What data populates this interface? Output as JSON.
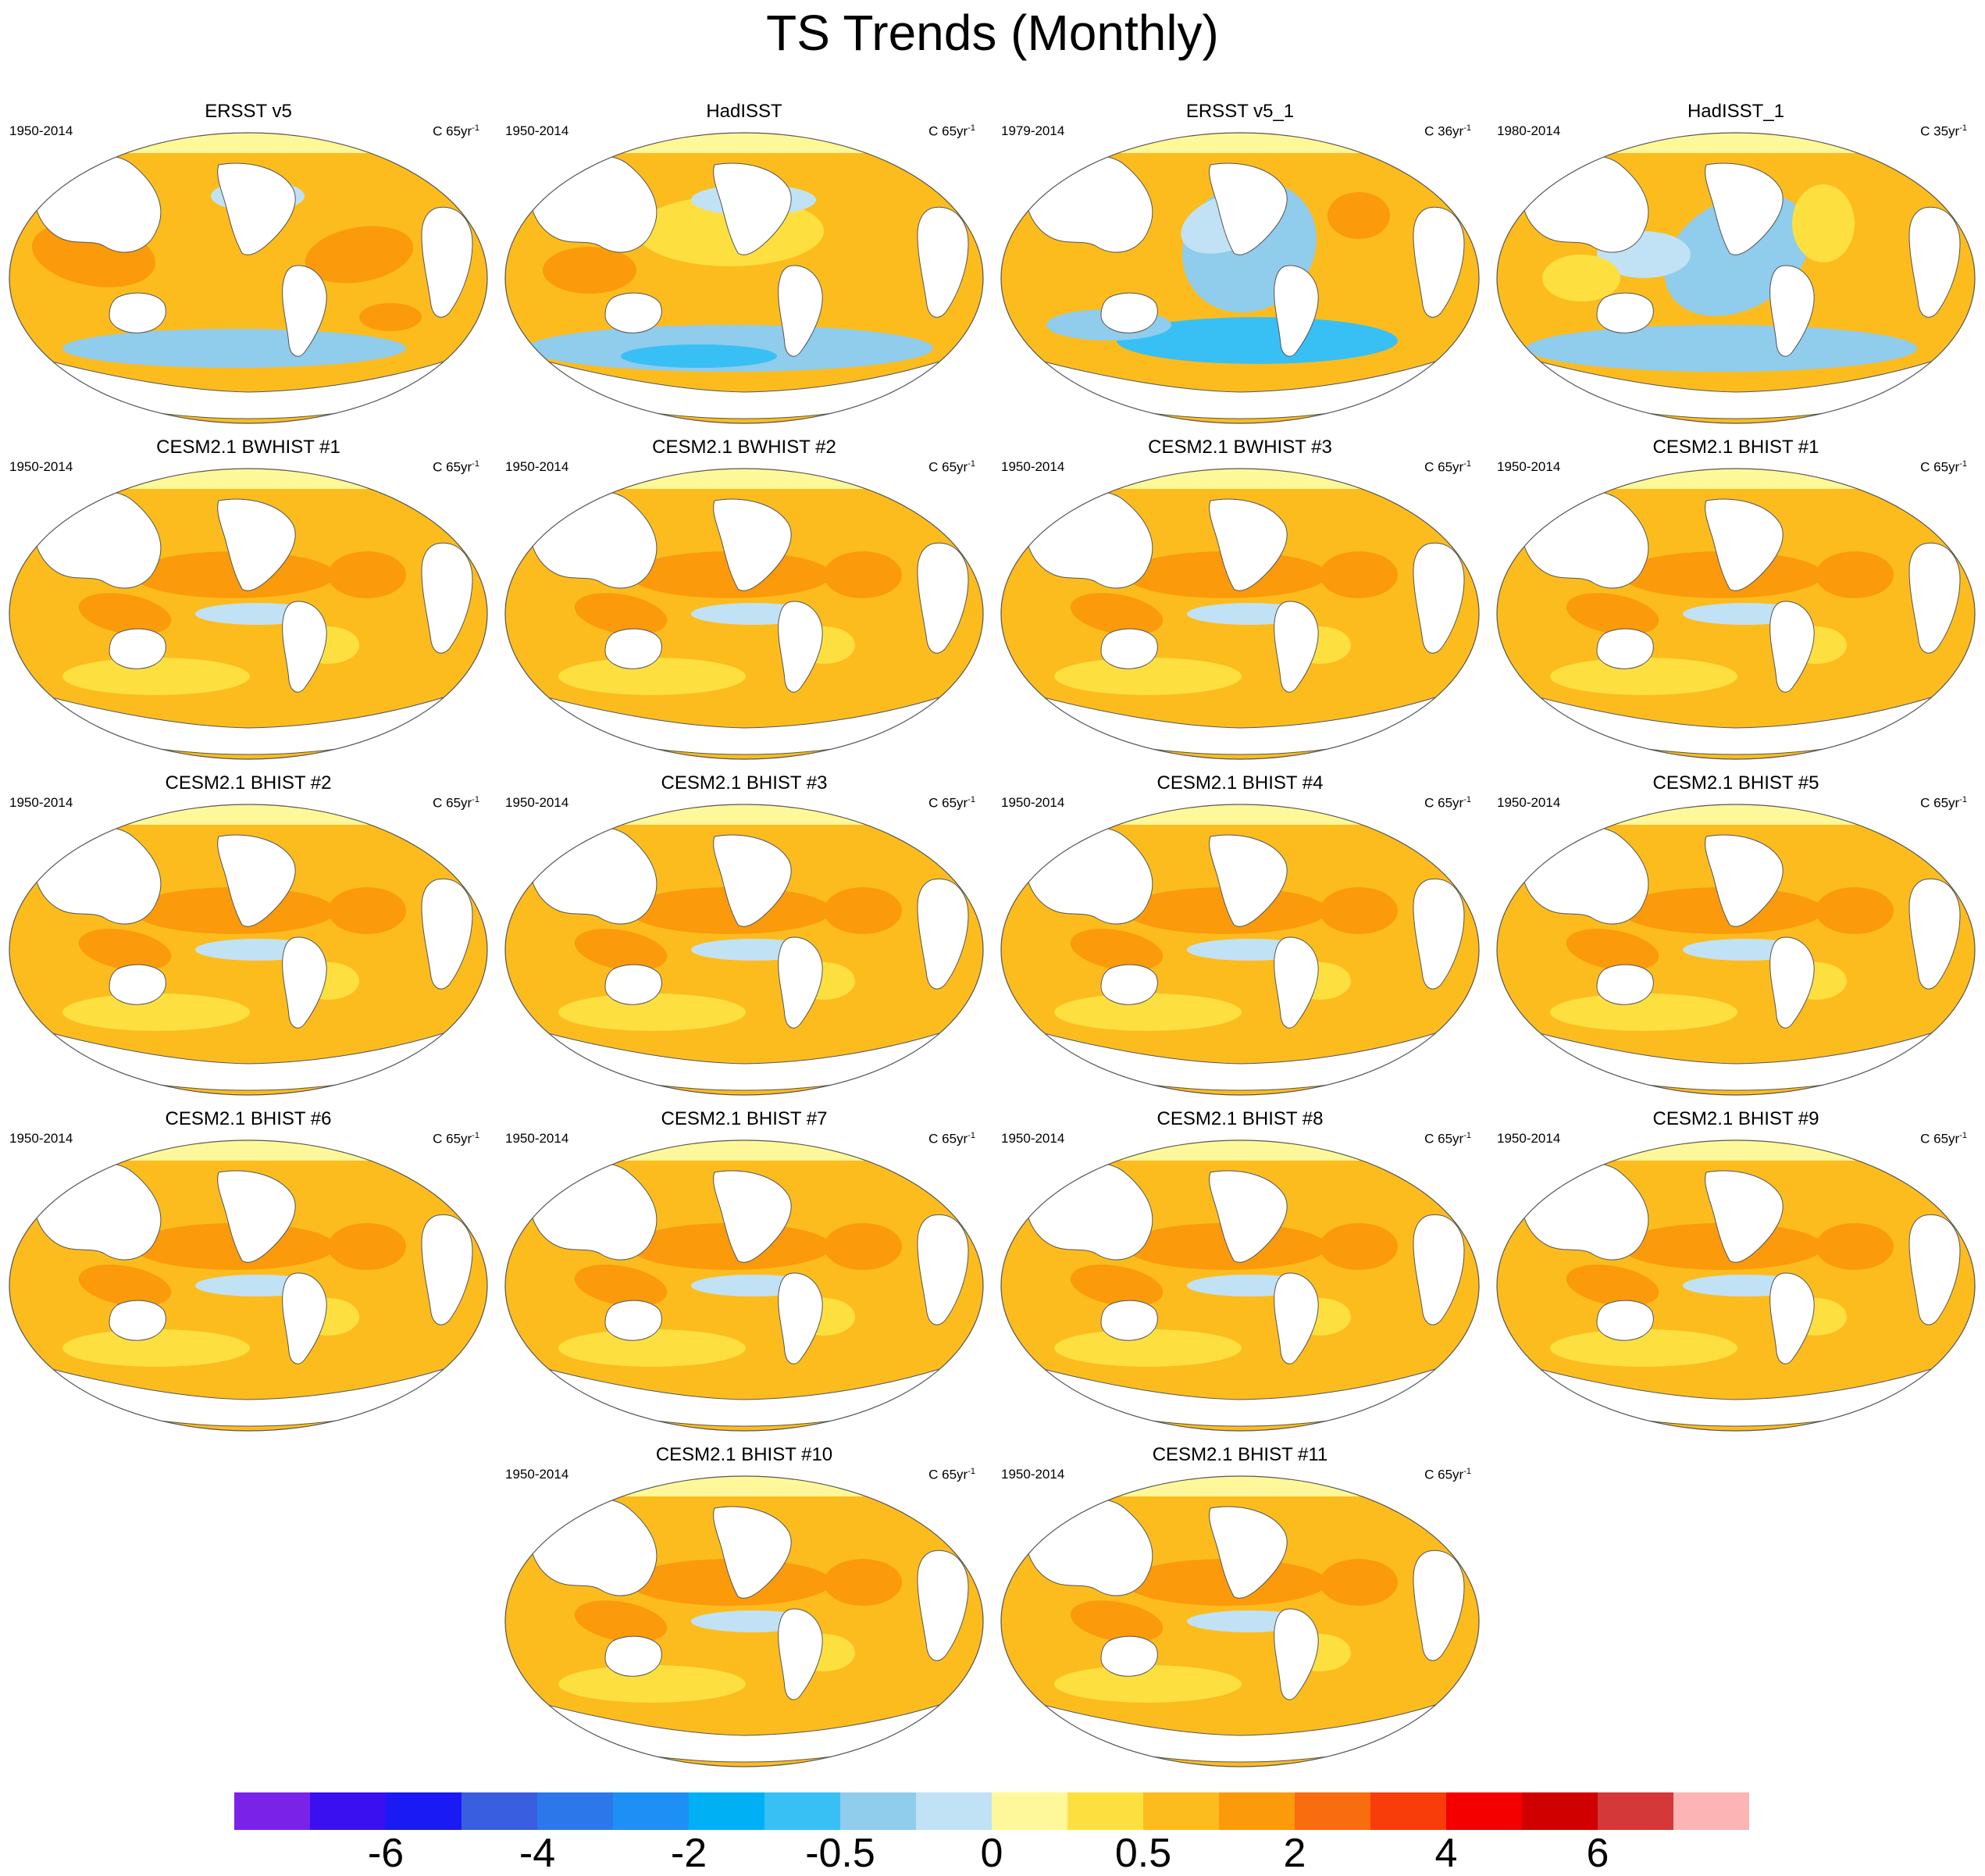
{
  "title": "TS Trends (Monthly)",
  "panels": [
    {
      "title": "ERSST v5",
      "period": "1950-2014",
      "units": "C 65yr",
      "units_sup": "-1",
      "pattern": "obs1"
    },
    {
      "title": "HadISST",
      "period": "1950-2014",
      "units": "C 65yr",
      "units_sup": "-1",
      "pattern": "obs2"
    },
    {
      "title": "ERSST v5_1",
      "period": "1979-2014",
      "units": "C 36yr",
      "units_sup": "-1",
      "pattern": "obs3"
    },
    {
      "title": "HadISST_1",
      "period": "1980-2014",
      "units": "C 35yr",
      "units_sup": "-1",
      "pattern": "obs4"
    },
    {
      "title": "CESM2.1 BWHIST #1",
      "period": "1950-2014",
      "units": "C 65yr",
      "units_sup": "-1",
      "pattern": "model"
    },
    {
      "title": "CESM2.1 BWHIST #2",
      "period": "1950-2014",
      "units": "C 65yr",
      "units_sup": "-1",
      "pattern": "model"
    },
    {
      "title": "CESM2.1 BWHIST #3",
      "period": "1950-2014",
      "units": "C 65yr",
      "units_sup": "-1",
      "pattern": "model"
    },
    {
      "title": "CESM2.1 BHIST #1",
      "period": "1950-2014",
      "units": "C 65yr",
      "units_sup": "-1",
      "pattern": "model"
    },
    {
      "title": "CESM2.1 BHIST #2",
      "period": "1950-2014",
      "units": "C 65yr",
      "units_sup": "-1",
      "pattern": "model"
    },
    {
      "title": "CESM2.1 BHIST #3",
      "period": "1950-2014",
      "units": "C 65yr",
      "units_sup": "-1",
      "pattern": "model"
    },
    {
      "title": "CESM2.1 BHIST #4",
      "period": "1950-2014",
      "units": "C 65yr",
      "units_sup": "-1",
      "pattern": "model"
    },
    {
      "title": "CESM2.1 BHIST #5",
      "period": "1950-2014",
      "units": "C 65yr",
      "units_sup": "-1",
      "pattern": "model"
    },
    {
      "title": "CESM2.1 BHIST #6",
      "period": "1950-2014",
      "units": "C 65yr",
      "units_sup": "-1",
      "pattern": "model"
    },
    {
      "title": "CESM2.1 BHIST #7",
      "period": "1950-2014",
      "units": "C 65yr",
      "units_sup": "-1",
      "pattern": "model"
    },
    {
      "title": "CESM2.1 BHIST #8",
      "period": "1950-2014",
      "units": "C 65yr",
      "units_sup": "-1",
      "pattern": "model"
    },
    {
      "title": "CESM2.1 BHIST #9",
      "period": "1950-2014",
      "units": "C 65yr",
      "units_sup": "-1",
      "pattern": "model"
    },
    {
      "title": "CESM2.1 BHIST #10",
      "period": "1950-2014",
      "units": "C 65yr",
      "units_sup": "-1",
      "pattern": "model"
    },
    {
      "title": "CESM2.1 BHIST #11",
      "period": "1950-2014",
      "units": "C 65yr",
      "units_sup": "-1",
      "pattern": "model"
    }
  ],
  "colorbar": {
    "colors": [
      "#7a22e8",
      "#3a10f0",
      "#1a1af5",
      "#3a5ee0",
      "#2c78ea",
      "#1e90f5",
      "#00b0f5",
      "#38c0f5",
      "#90ccec",
      "#c0e2f4",
      "#fff89a",
      "#fde040",
      "#fcbc1e",
      "#fb9a0a",
      "#f96c10",
      "#f83c0a",
      "#f50000",
      "#d00000",
      "#d43838",
      "#fcb4b4"
    ],
    "tick_labels": [
      "-6",
      "-4",
      "-2",
      "-0.5",
      "0",
      "0.5",
      "2",
      "4",
      "6"
    ]
  }
}
